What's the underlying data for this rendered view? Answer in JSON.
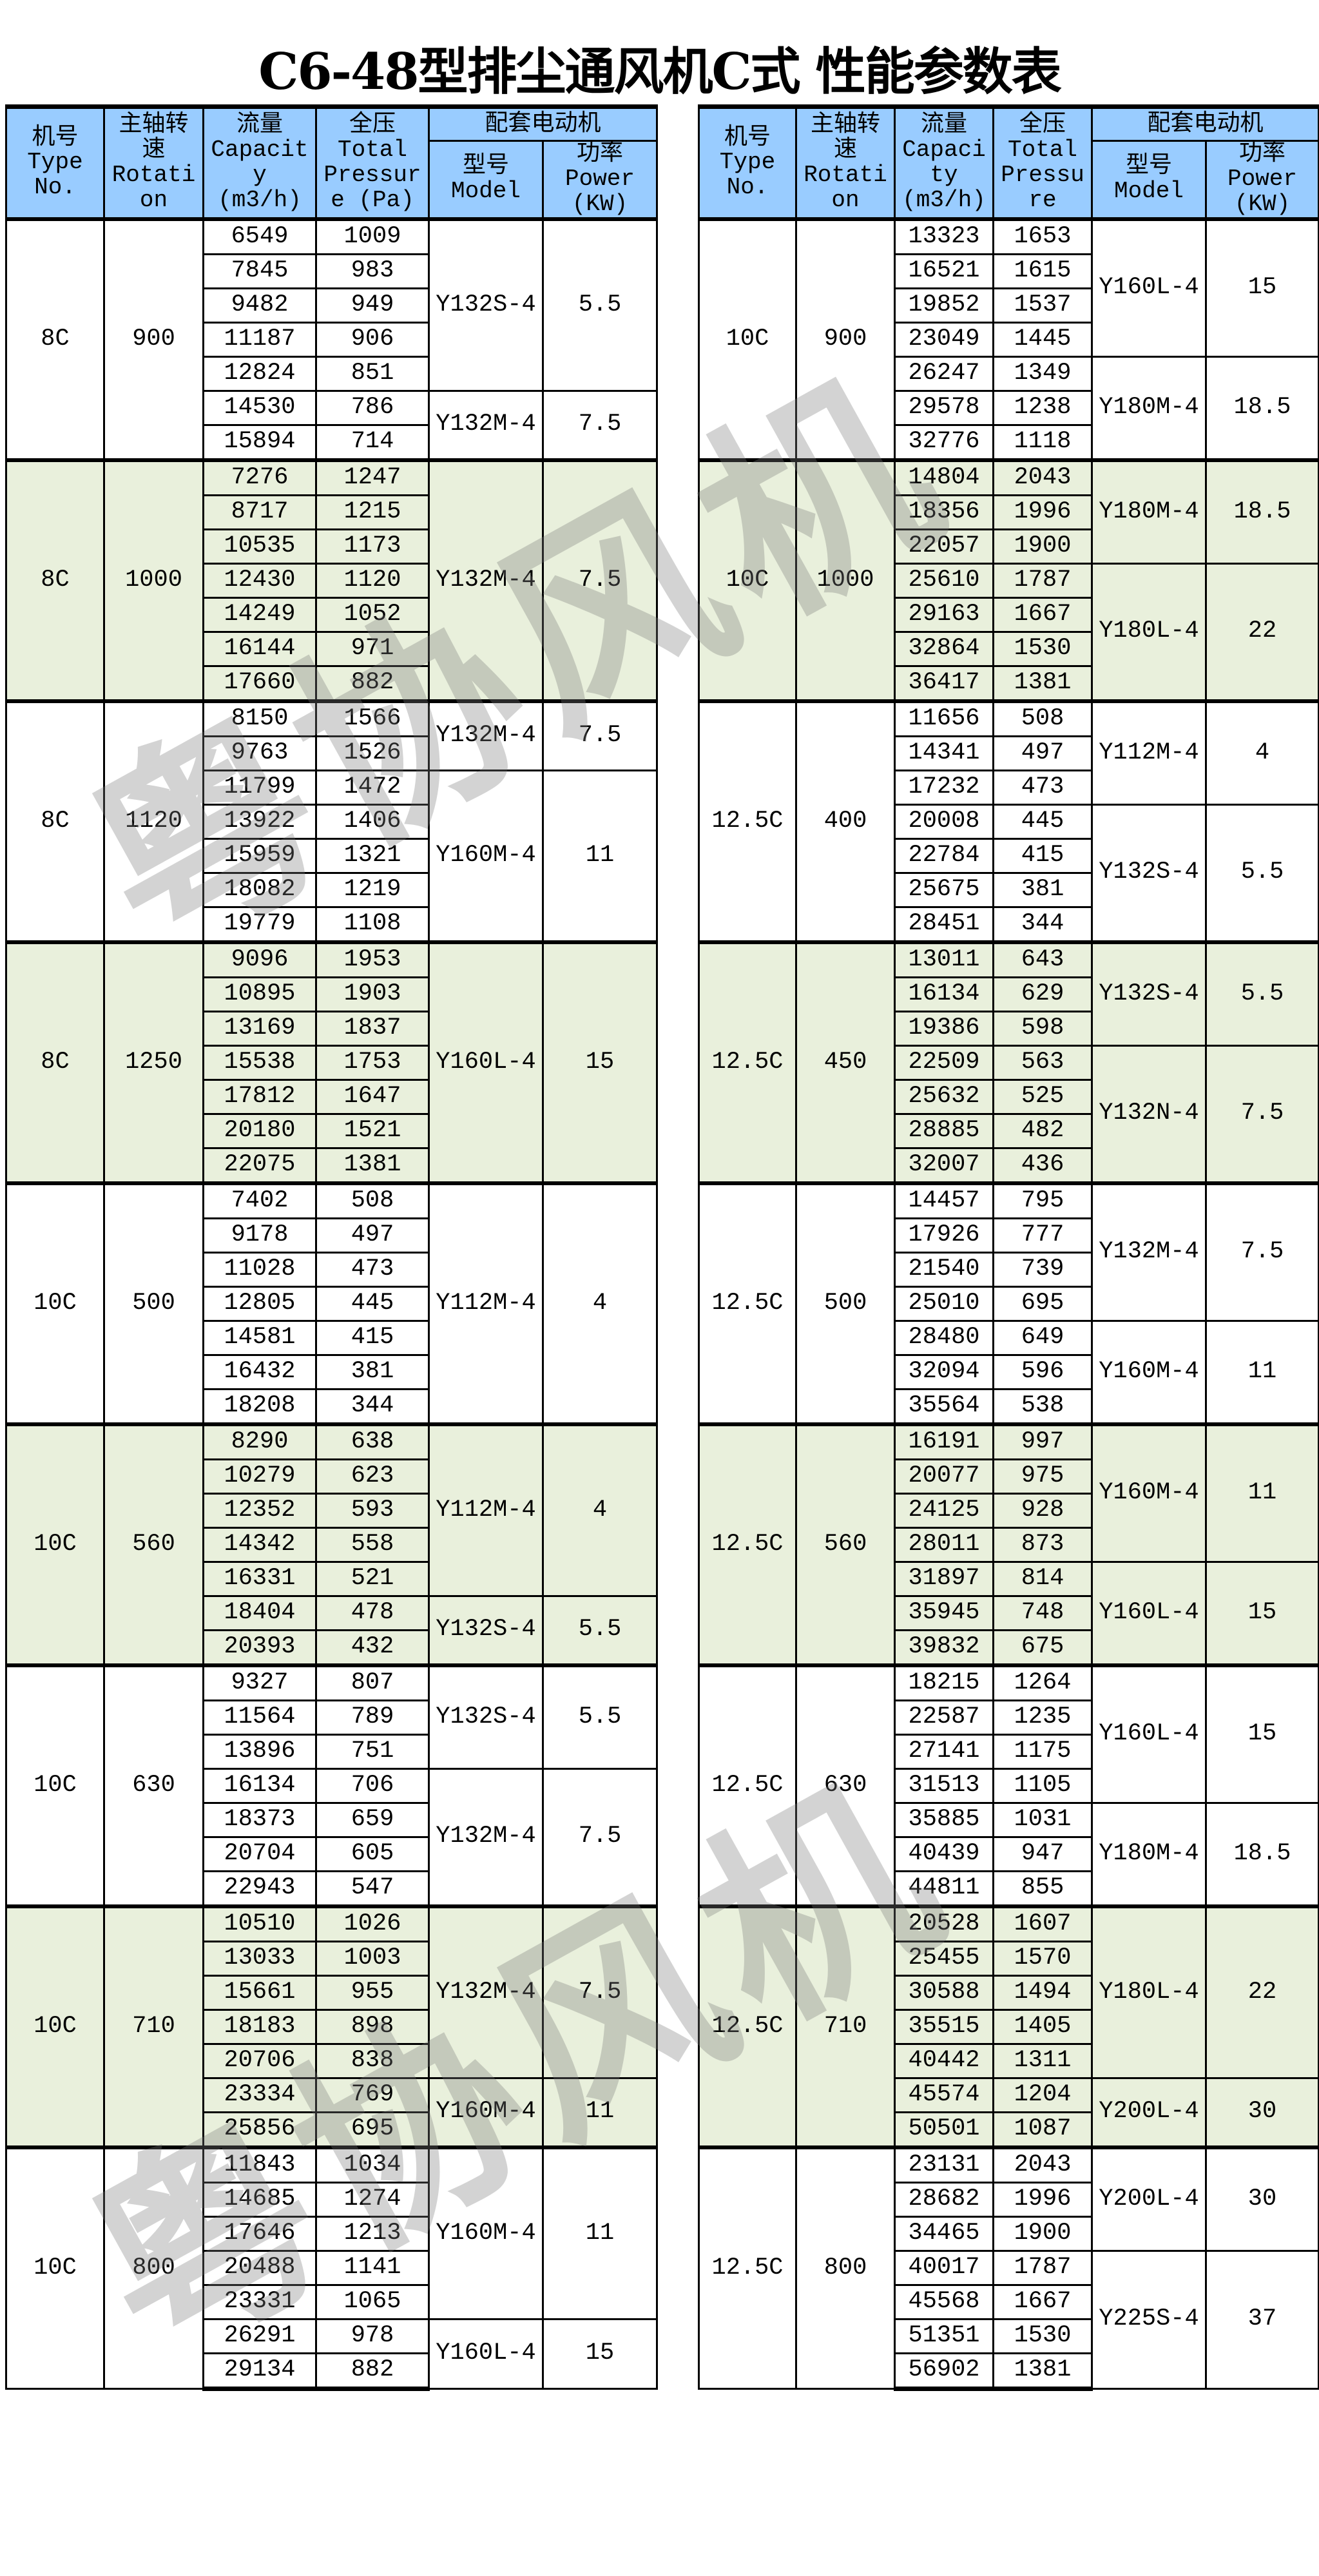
{
  "title": "C6-48型排尘通风机C式 性能参数表",
  "watermark": "粤协风机",
  "colors": {
    "header_bg": "#99ccff",
    "shaded_group_bg": "#e9f0dc",
    "border": "#000000",
    "watermark": "#a0a0a0"
  },
  "tables": [
    {
      "header": {
        "type": [
          "机号",
          "Type",
          "No."
        ],
        "rotation": [
          "主轴转",
          "速",
          "Rotati",
          "on"
        ],
        "capacity": [
          "流量",
          "Capacit",
          "y",
          "(m3/h)"
        ],
        "pressure": [
          "全压",
          "Total",
          "Pressur",
          "e (Pa)"
        ],
        "motor": "配套电动机",
        "model": [
          "型号",
          "Model"
        ],
        "power": [
          "功率",
          "Power",
          "(KW)"
        ]
      },
      "groups": [
        {
          "type": "8C",
          "rotation": "900",
          "rows": [
            [
              "6549",
              "1009"
            ],
            [
              "7845",
              "983"
            ],
            [
              "9482",
              "949"
            ],
            [
              "11187",
              "906"
            ],
            [
              "12824",
              "851"
            ],
            [
              "14530",
              "786"
            ],
            [
              "15894",
              "714"
            ]
          ],
          "motors": [
            {
              "model": "Y132S-4",
              "power": "5.5",
              "rows_covered": 5
            },
            {
              "model": "Y132M-4",
              "power": "7.5",
              "rows_covered": 2
            }
          ]
        },
        {
          "type": "8C",
          "rotation": "1000",
          "rows": [
            [
              "7276",
              "1247"
            ],
            [
              "8717",
              "1215"
            ],
            [
              "10535",
              "1173"
            ],
            [
              "12430",
              "1120"
            ],
            [
              "14249",
              "1052"
            ],
            [
              "16144",
              "971"
            ],
            [
              "17660",
              "882"
            ]
          ],
          "motors": [
            {
              "model": "Y132M-4",
              "power": "7.5",
              "rows_covered": 7
            }
          ]
        },
        {
          "type": "8C",
          "rotation": "1120",
          "rows": [
            [
              "8150",
              "1566"
            ],
            [
              "9763",
              "1526"
            ],
            [
              "11799",
              "1472"
            ],
            [
              "13922",
              "1406"
            ],
            [
              "15959",
              "1321"
            ],
            [
              "18082",
              "1219"
            ],
            [
              "19779",
              "1108"
            ]
          ],
          "motors": [
            {
              "model": "Y132M-4",
              "power": "7.5",
              "rows_covered": 2
            },
            {
              "model": "Y160M-4",
              "power": "11",
              "rows_covered": 5
            }
          ]
        },
        {
          "type": "8C",
          "rotation": "1250",
          "rows": [
            [
              "9096",
              "1953"
            ],
            [
              "10895",
              "1903"
            ],
            [
              "13169",
              "1837"
            ],
            [
              "15538",
              "1753"
            ],
            [
              "17812",
              "1647"
            ],
            [
              "20180",
              "1521"
            ],
            [
              "22075",
              "1381"
            ]
          ],
          "motors": [
            {
              "model": "Y160L-4",
              "power": "15",
              "rows_covered": 7
            }
          ]
        },
        {
          "type": "10C",
          "rotation": "500",
          "rows": [
            [
              "7402",
              "508"
            ],
            [
              "9178",
              "497"
            ],
            [
              "11028",
              "473"
            ],
            [
              "12805",
              "445"
            ],
            [
              "14581",
              "415"
            ],
            [
              "16432",
              "381"
            ],
            [
              "18208",
              "344"
            ]
          ],
          "motors": [
            {
              "model": "Y112M-4",
              "power": "4",
              "rows_covered": 7
            }
          ]
        },
        {
          "type": "10C",
          "rotation": "560",
          "rows": [
            [
              "8290",
              "638"
            ],
            [
              "10279",
              "623"
            ],
            [
              "12352",
              "593"
            ],
            [
              "14342",
              "558"
            ],
            [
              "16331",
              "521"
            ],
            [
              "18404",
              "478"
            ],
            [
              "20393",
              "432"
            ]
          ],
          "motors": [
            {
              "model": "Y112M-4",
              "power": "4",
              "rows_covered": 5
            },
            {
              "model": "Y132S-4",
              "power": "5.5",
              "rows_covered": 2
            }
          ]
        },
        {
          "type": "10C",
          "rotation": "630",
          "rows": [
            [
              "9327",
              "807"
            ],
            [
              "11564",
              "789"
            ],
            [
              "13896",
              "751"
            ],
            [
              "16134",
              "706"
            ],
            [
              "18373",
              "659"
            ],
            [
              "20704",
              "605"
            ],
            [
              "22943",
              "547"
            ]
          ],
          "motors": [
            {
              "model": "Y132S-4",
              "power": "5.5",
              "rows_covered": 3
            },
            {
              "model": "Y132M-4",
              "power": "7.5",
              "rows_covered": 4
            }
          ]
        },
        {
          "type": "10C",
          "rotation": "710",
          "rows": [
            [
              "10510",
              "1026"
            ],
            [
              "13033",
              "1003"
            ],
            [
              "15661",
              "955"
            ],
            [
              "18183",
              "898"
            ],
            [
              "20706",
              "838"
            ],
            [
              "23334",
              "769"
            ],
            [
              "25856",
              "695"
            ]
          ],
          "motors": [
            {
              "model": "Y132M-4",
              "power": "7.5",
              "rows_covered": 5
            },
            {
              "model": "Y160M-4",
              "power": "11",
              "rows_covered": 2
            }
          ]
        },
        {
          "type": "10C",
          "rotation": "800",
          "rows": [
            [
              "11843",
              "1034"
            ],
            [
              "14685",
              "1274"
            ],
            [
              "17646",
              "1213"
            ],
            [
              "20488",
              "1141"
            ],
            [
              "23331",
              "1065"
            ],
            [
              "26291",
              "978"
            ],
            [
              "29134",
              "882"
            ]
          ],
          "motors": [
            {
              "model": "Y160M-4",
              "power": "11",
              "rows_covered": 5
            },
            {
              "model": "Y160L-4",
              "power": "15",
              "rows_covered": 2
            }
          ]
        }
      ]
    },
    {
      "header": {
        "type": [
          "机号",
          "Type",
          "No."
        ],
        "rotation": [
          "主轴转",
          "速",
          "Rotati",
          "on"
        ],
        "capacity": [
          "流量",
          "Capaci",
          "ty",
          "(m3/h)"
        ],
        "pressure": [
          "全压",
          "Total",
          "Pressu",
          "re"
        ],
        "motor": "配套电动机",
        "model": [
          "型号",
          "Model"
        ],
        "power": [
          "功率",
          "Power",
          "(KW)"
        ]
      },
      "groups": [
        {
          "type": "10C",
          "rotation": "900",
          "rows": [
            [
              "13323",
              "1653"
            ],
            [
              "16521",
              "1615"
            ],
            [
              "19852",
              "1537"
            ],
            [
              "23049",
              "1445"
            ],
            [
              "26247",
              "1349"
            ],
            [
              "29578",
              "1238"
            ],
            [
              "32776",
              "1118"
            ]
          ],
          "motors": [
            {
              "model": "Y160L-4",
              "power": "15",
              "rows_covered": 4
            },
            {
              "model": "Y180M-4",
              "power": "18.5",
              "rows_covered": 3
            }
          ]
        },
        {
          "type": "10C",
          "rotation": "1000",
          "rows": [
            [
              "14804",
              "2043"
            ],
            [
              "18356",
              "1996"
            ],
            [
              "22057",
              "1900"
            ],
            [
              "25610",
              "1787"
            ],
            [
              "29163",
              "1667"
            ],
            [
              "32864",
              "1530"
            ],
            [
              "36417",
              "1381"
            ]
          ],
          "motors": [
            {
              "model": "Y180M-4",
              "power": "18.5",
              "rows_covered": 3
            },
            {
              "model": "Y180L-4",
              "power": "22",
              "rows_covered": 4
            }
          ]
        },
        {
          "type": "12.5C",
          "rotation": "400",
          "rows": [
            [
              "11656",
              "508"
            ],
            [
              "14341",
              "497"
            ],
            [
              "17232",
              "473"
            ],
            [
              "20008",
              "445"
            ],
            [
              "22784",
              "415"
            ],
            [
              "25675",
              "381"
            ],
            [
              "28451",
              "344"
            ]
          ],
          "motors": [
            {
              "model": "Y112M-4",
              "power": "4",
              "rows_covered": 3
            },
            {
              "model": "Y132S-4",
              "power": "5.5",
              "rows_covered": 4
            }
          ]
        },
        {
          "type": "12.5C",
          "rotation": "450",
          "rows": [
            [
              "13011",
              "643"
            ],
            [
              "16134",
              "629"
            ],
            [
              "19386",
              "598"
            ],
            [
              "22509",
              "563"
            ],
            [
              "25632",
              "525"
            ],
            [
              "28885",
              "482"
            ],
            [
              "32007",
              "436"
            ]
          ],
          "motors": [
            {
              "model": "Y132S-4",
              "power": "5.5",
              "rows_covered": 3
            },
            {
              "model": "Y132N-4",
              "power": "7.5",
              "rows_covered": 4
            }
          ]
        },
        {
          "type": "12.5C",
          "rotation": "500",
          "rows": [
            [
              "14457",
              "795"
            ],
            [
              "17926",
              "777"
            ],
            [
              "21540",
              "739"
            ],
            [
              "25010",
              "695"
            ],
            [
              "28480",
              "649"
            ],
            [
              "32094",
              "596"
            ],
            [
              "35564",
              "538"
            ]
          ],
          "motors": [
            {
              "model": "Y132M-4",
              "power": "7.5",
              "rows_covered": 4
            },
            {
              "model": "Y160M-4",
              "power": "11",
              "rows_covered": 3
            }
          ]
        },
        {
          "type": "12.5C",
          "rotation": "560",
          "rows": [
            [
              "16191",
              "997"
            ],
            [
              "20077",
              "975"
            ],
            [
              "24125",
              "928"
            ],
            [
              "28011",
              "873"
            ],
            [
              "31897",
              "814"
            ],
            [
              "35945",
              "748"
            ],
            [
              "39832",
              "675"
            ]
          ],
          "motors": [
            {
              "model": "Y160M-4",
              "power": "11",
              "rows_covered": 4
            },
            {
              "model": "Y160L-4",
              "power": "15",
              "rows_covered": 3
            }
          ]
        },
        {
          "type": "12.5C",
          "rotation": "630",
          "rows": [
            [
              "18215",
              "1264"
            ],
            [
              "22587",
              "1235"
            ],
            [
              "27141",
              "1175"
            ],
            [
              "31513",
              "1105"
            ],
            [
              "35885",
              "1031"
            ],
            [
              "40439",
              "947"
            ],
            [
              "44811",
              "855"
            ]
          ],
          "motors": [
            {
              "model": "Y160L-4",
              "power": "15",
              "rows_covered": 4
            },
            {
              "model": "Y180M-4",
              "power": "18.5",
              "rows_covered": 3
            }
          ]
        },
        {
          "type": "12.5C",
          "rotation": "710",
          "rows": [
            [
              "20528",
              "1607"
            ],
            [
              "25455",
              "1570"
            ],
            [
              "30588",
              "1494"
            ],
            [
              "35515",
              "1405"
            ],
            [
              "40442",
              "1311"
            ],
            [
              "45574",
              "1204"
            ],
            [
              "50501",
              "1087"
            ]
          ],
          "motors": [
            {
              "model": "Y180L-4",
              "power": "22",
              "rows_covered": 5
            },
            {
              "model": "Y200L-4",
              "power": "30",
              "rows_covered": 2
            }
          ]
        },
        {
          "type": "12.5C",
          "rotation": "800",
          "rows": [
            [
              "23131",
              "2043"
            ],
            [
              "28682",
              "1996"
            ],
            [
              "34465",
              "1900"
            ],
            [
              "40017",
              "1787"
            ],
            [
              "45568",
              "1667"
            ],
            [
              "51351",
              "1530"
            ],
            [
              "56902",
              "1381"
            ]
          ],
          "motors": [
            {
              "model": "Y200L-4",
              "power": "30",
              "rows_covered": 3
            },
            {
              "model": "Y225S-4",
              "power": "37",
              "rows_covered": 4
            }
          ]
        }
      ]
    }
  ]
}
